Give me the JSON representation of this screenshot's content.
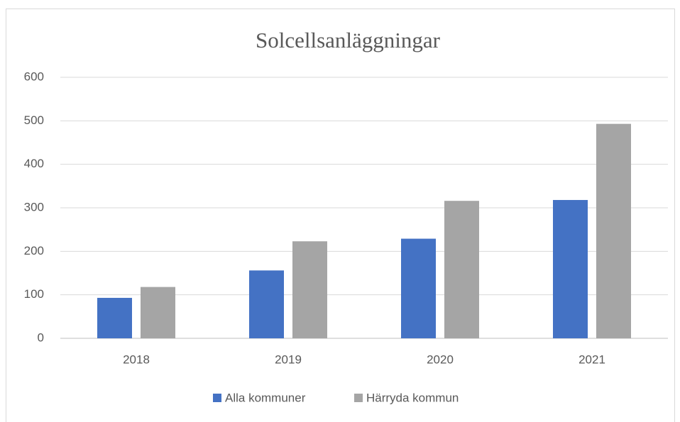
{
  "chart_data": {
    "type": "bar",
    "title": "Solcellsanläggningar",
    "categories": [
      "2018",
      "2019",
      "2020",
      "2021"
    ],
    "series": [
      {
        "name": "Alla kommuner",
        "color": "#4472c4",
        "values": [
          93,
          156,
          229,
          318
        ]
      },
      {
        "name": "Härryda kommun",
        "color": "#a5a5a5",
        "values": [
          118,
          223,
          316,
          493
        ]
      }
    ],
    "ylim": [
      0,
      600
    ],
    "yticks": [
      0,
      100,
      200,
      300,
      400,
      500,
      600
    ],
    "grid": true,
    "legend": "bottom"
  }
}
